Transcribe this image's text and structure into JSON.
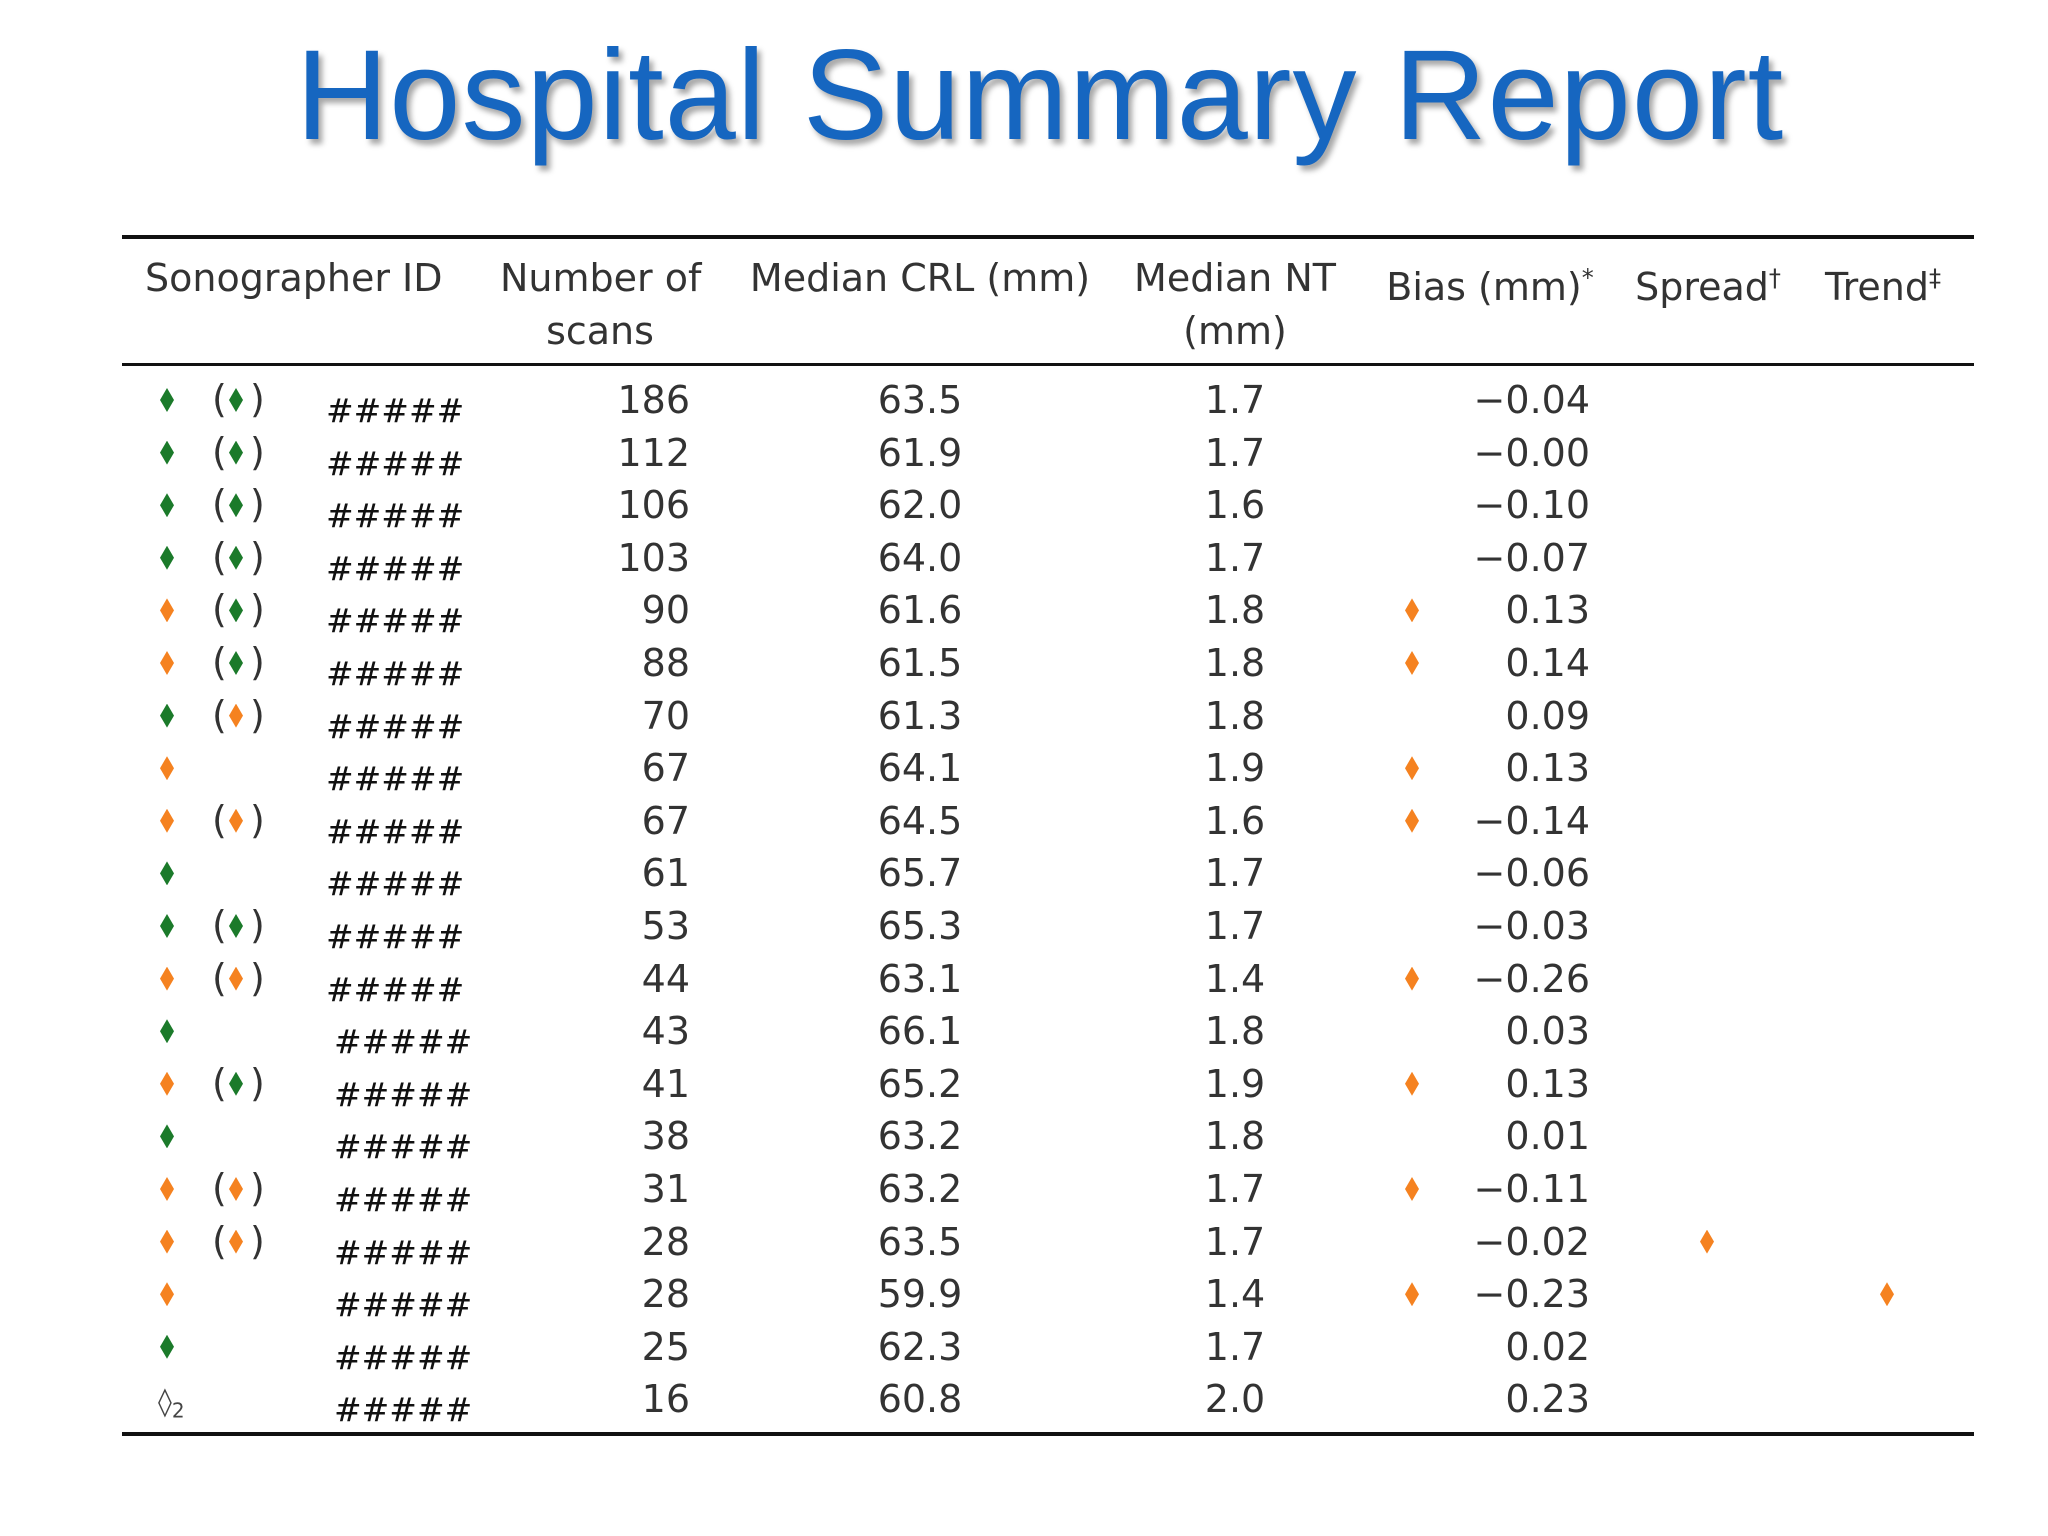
{
  "title": "Hospital Summary Report",
  "headers": {
    "sonographer_id": "Sonographer ID",
    "num_scans_1": "Number of",
    "num_scans_2": "scans",
    "median_crl": "Median CRL (mm)",
    "median_nt_1": "Median NT",
    "median_nt_2": "(mm)",
    "bias": "Bias (mm)",
    "bias_mark": "*",
    "spread": "Spread",
    "spread_mark": "†",
    "trend": "Trend",
    "trend_mark": "‡"
  },
  "colors": {
    "title": "#1666c0",
    "green": "#1b7a2a",
    "orange": "#f58220"
  },
  "rows": [
    {
      "status": "green",
      "paren": "green",
      "id": "#####",
      "scans": "186",
      "crl": "63.5",
      "nt": "1.7",
      "bias": "−0.04",
      "bias_flag": false,
      "spread_flag": false,
      "trend_flag": false
    },
    {
      "status": "green",
      "paren": "green",
      "id": "#####",
      "scans": "112",
      "crl": "61.9",
      "nt": "1.7",
      "bias": "−0.00",
      "bias_flag": false,
      "spread_flag": false,
      "trend_flag": false
    },
    {
      "status": "green",
      "paren": "green",
      "id": "#####",
      "scans": "106",
      "crl": "62.0",
      "nt": "1.6",
      "bias": "−0.10",
      "bias_flag": false,
      "spread_flag": false,
      "trend_flag": false
    },
    {
      "status": "green",
      "paren": "green",
      "id": "#####",
      "scans": "103",
      "crl": "64.0",
      "nt": "1.7",
      "bias": "−0.07",
      "bias_flag": false,
      "spread_flag": false,
      "trend_flag": false
    },
    {
      "status": "orange",
      "paren": "green",
      "id": "#####",
      "scans": "90",
      "crl": "61.6",
      "nt": "1.8",
      "bias": "0.13",
      "bias_flag": true,
      "spread_flag": false,
      "trend_flag": false
    },
    {
      "status": "orange",
      "paren": "green",
      "id": "#####",
      "scans": "88",
      "crl": "61.5",
      "nt": "1.8",
      "bias": "0.14",
      "bias_flag": true,
      "spread_flag": false,
      "trend_flag": false
    },
    {
      "status": "green",
      "paren": "orange",
      "id": "#####",
      "scans": "70",
      "crl": "61.3",
      "nt": "1.8",
      "bias": "0.09",
      "bias_flag": false,
      "spread_flag": false,
      "trend_flag": false
    },
    {
      "status": "orange",
      "paren": null,
      "id": "#####",
      "scans": "67",
      "crl": "64.1",
      "nt": "1.9",
      "bias": "0.13",
      "bias_flag": true,
      "spread_flag": false,
      "trend_flag": false
    },
    {
      "status": "orange",
      "paren": "orange",
      "id": "#####",
      "scans": "67",
      "crl": "64.5",
      "nt": "1.6",
      "bias": "−0.14",
      "bias_flag": true,
      "spread_flag": false,
      "trend_flag": false
    },
    {
      "status": "green",
      "paren": null,
      "id": "#####",
      "scans": "61",
      "crl": "65.7",
      "nt": "1.7",
      "bias": "−0.06",
      "bias_flag": false,
      "spread_flag": false,
      "trend_flag": false
    },
    {
      "status": "green",
      "paren": "green",
      "id": "#####",
      "scans": "53",
      "crl": "65.3",
      "nt": "1.7",
      "bias": "−0.03",
      "bias_flag": false,
      "spread_flag": false,
      "trend_flag": false
    },
    {
      "status": "orange",
      "paren": "orange",
      "id": "#####",
      "scans": "44",
      "crl": "63.1",
      "nt": "1.4",
      "bias": "−0.26",
      "bias_flag": true,
      "spread_flag": false,
      "trend_flag": false
    },
    {
      "status": "green",
      "paren": null,
      "id": "#####",
      "scans": "43",
      "crl": "66.1",
      "nt": "1.8",
      "bias": "0.03",
      "bias_flag": false,
      "spread_flag": false,
      "trend_flag": false
    },
    {
      "status": "orange",
      "paren": "green",
      "id": "#####",
      "scans": "41",
      "crl": "65.2",
      "nt": "1.9",
      "bias": "0.13",
      "bias_flag": true,
      "spread_flag": false,
      "trend_flag": false
    },
    {
      "status": "green",
      "paren": null,
      "id": "#####",
      "scans": "38",
      "crl": "63.2",
      "nt": "1.8",
      "bias": "0.01",
      "bias_flag": false,
      "spread_flag": false,
      "trend_flag": false
    },
    {
      "status": "orange",
      "paren": "orange",
      "id": "#####",
      "scans": "31",
      "crl": "63.2",
      "nt": "1.7",
      "bias": "−0.11",
      "bias_flag": true,
      "spread_flag": false,
      "trend_flag": false
    },
    {
      "status": "orange",
      "paren": "orange",
      "id": "#####",
      "scans": "28",
      "crl": "63.5",
      "nt": "1.7",
      "bias": "−0.02",
      "bias_flag": false,
      "spread_flag": true,
      "trend_flag": false
    },
    {
      "status": "orange",
      "paren": null,
      "id": "#####",
      "scans": "28",
      "crl": "59.9",
      "nt": "1.4",
      "bias": "−0.23",
      "bias_flag": true,
      "spread_flag": false,
      "trend_flag": true
    },
    {
      "status": "green",
      "paren": null,
      "id": "#####",
      "scans": "25",
      "crl": "62.3",
      "nt": "1.7",
      "bias": "0.02",
      "bias_flag": false,
      "spread_flag": false,
      "trend_flag": false
    },
    {
      "status": "hollow",
      "status_label": "◊",
      "status_sub": "2",
      "paren": null,
      "id": "#####",
      "scans": "16",
      "crl": "60.8",
      "nt": "2.0",
      "bias": "0.23",
      "bias_flag": false,
      "spread_flag": false,
      "trend_flag": false
    }
  ]
}
